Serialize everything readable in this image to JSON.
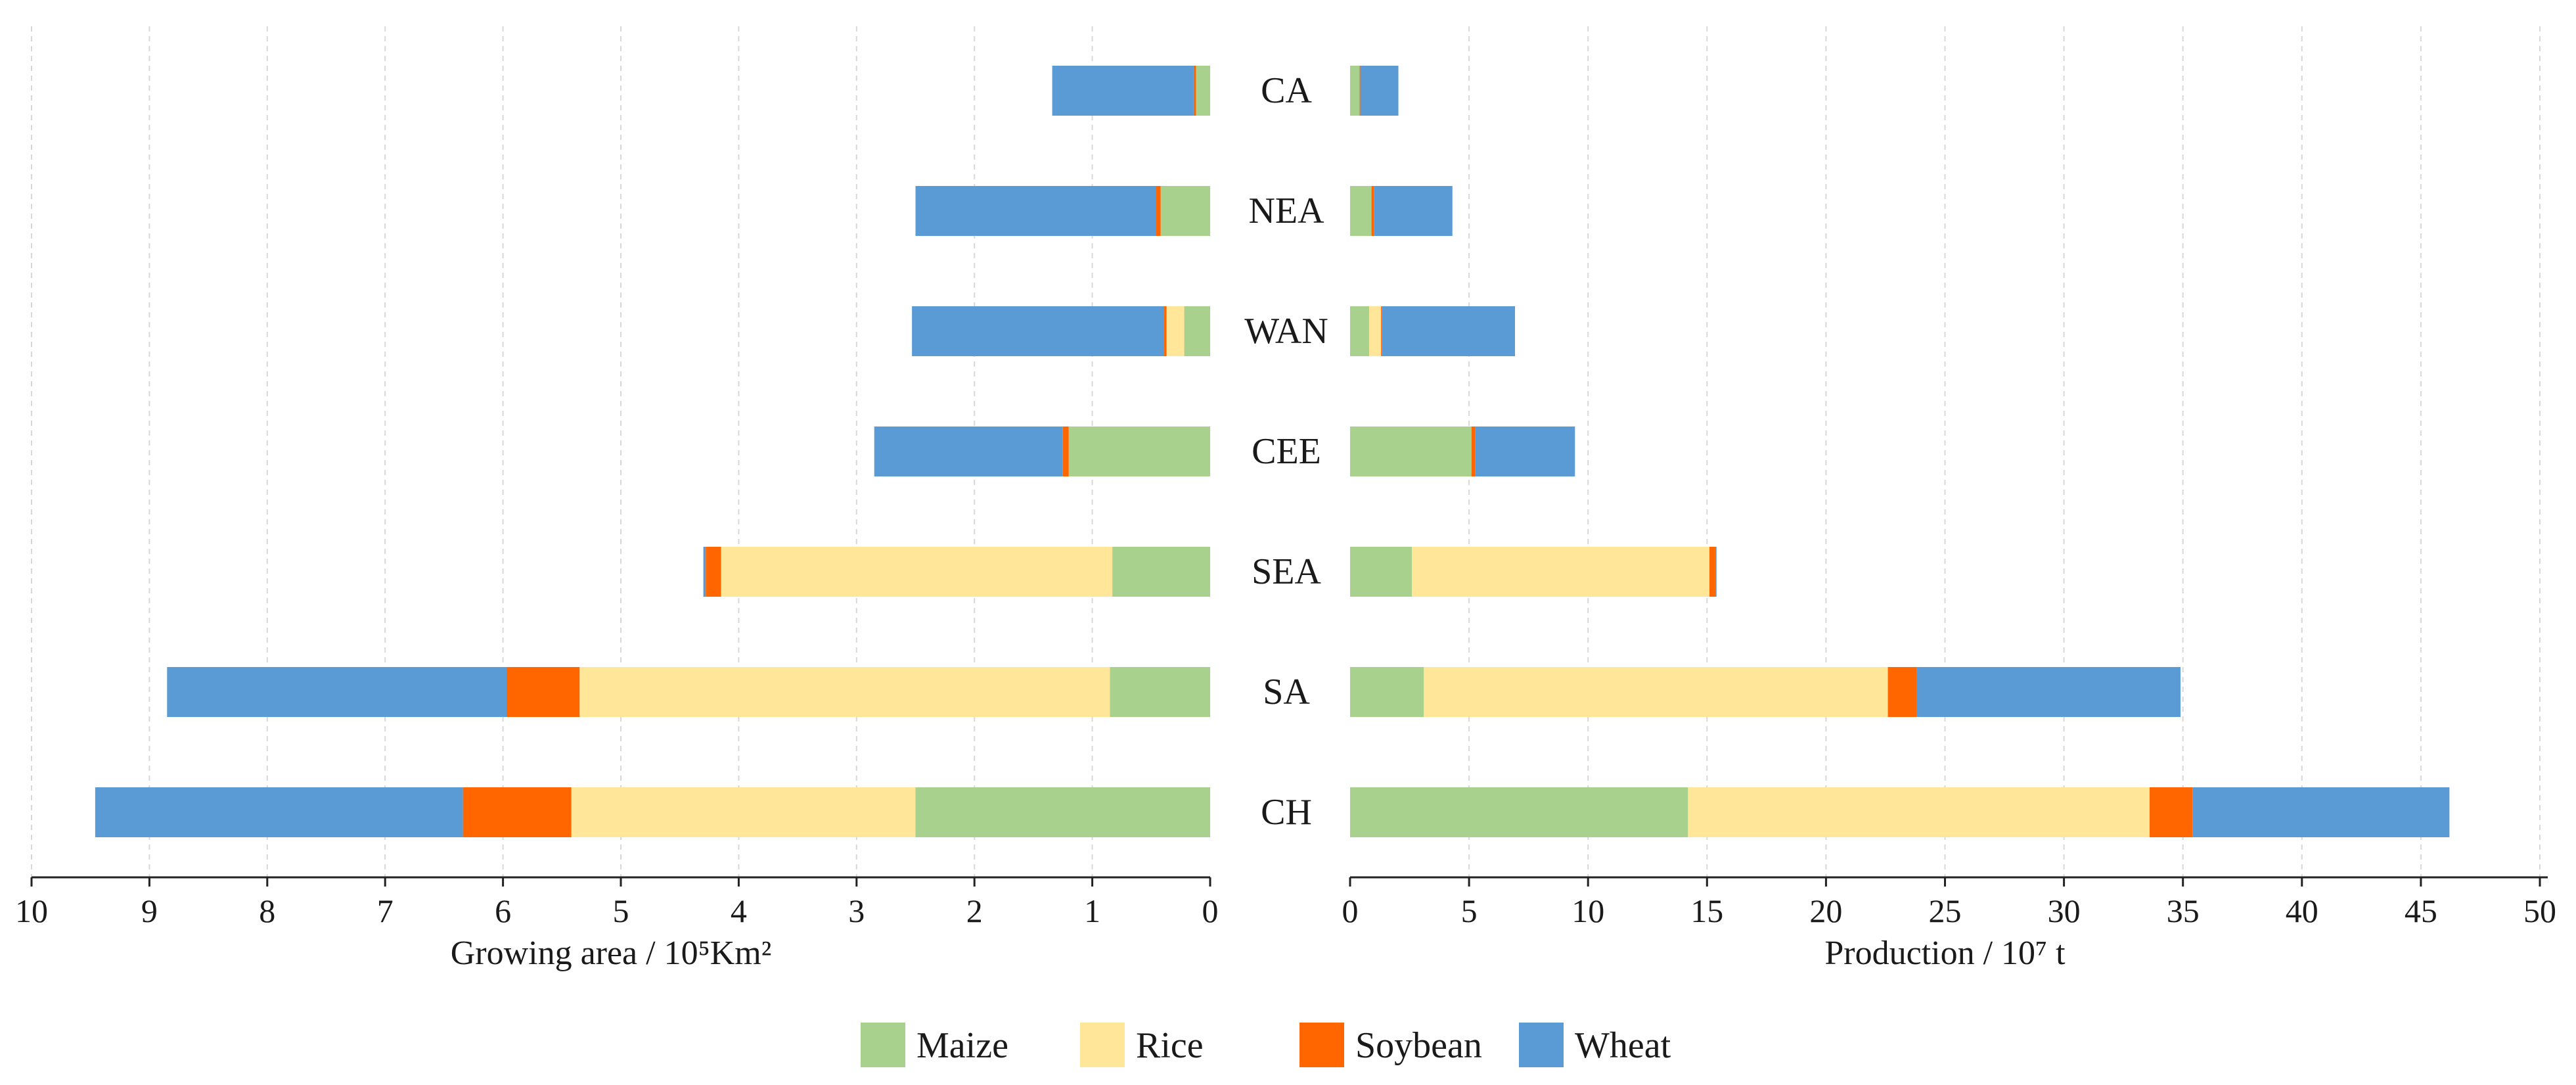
{
  "chart_data": {
    "type": "bar",
    "orientation": "horizontal",
    "stacked": true,
    "categories": [
      "CA",
      "NEA",
      "WAN",
      "CEE",
      "SEA",
      "SA",
      "CH"
    ],
    "series_order": [
      "Maize",
      "Rice",
      "Soybean",
      "Wheat"
    ],
    "colors": {
      "Maize": "#a9d18e",
      "Rice": "#ffe699",
      "Soybean": "#ff6600",
      "Wheat": "#5b9bd5"
    },
    "panels": [
      {
        "key": "area",
        "direction": "leftward",
        "xlabel": "Growing area / 10⁵Km²",
        "xlim": [
          0,
          10
        ],
        "ticks": [
          "0",
          "1",
          "2",
          "3",
          "4",
          "5",
          "6",
          "7",
          "8",
          "9",
          "10"
        ],
        "series": [
          {
            "name": "Maize",
            "values": [
              0.12,
              0.42,
              0.22,
              1.2,
              0.83,
              0.85,
              2.5
            ]
          },
          {
            "name": "Rice",
            "values": [
              0.0,
              0.0,
              0.15,
              0.0,
              3.32,
              4.5,
              2.92
            ]
          },
          {
            "name": "Soybean",
            "values": [
              0.02,
              0.04,
              0.02,
              0.05,
              0.13,
              0.62,
              0.92
            ]
          },
          {
            "name": "Wheat",
            "values": [
              1.2,
              2.04,
              2.14,
              1.6,
              0.02,
              2.88,
              3.12
            ]
          }
        ]
      },
      {
        "key": "production",
        "direction": "rightward",
        "xlabel": "Production / 10⁷ t",
        "xlim": [
          0,
          50
        ],
        "ticks": [
          "0",
          "5",
          "10",
          "15",
          "20",
          "25",
          "30",
          "35",
          "40",
          "45",
          "50"
        ],
        "series": [
          {
            "name": "Maize",
            "values": [
              0.4,
              0.9,
              0.8,
              5.1,
              2.6,
              3.1,
              14.2
            ]
          },
          {
            "name": "Rice",
            "values": [
              0.0,
              0.0,
              0.5,
              0.0,
              12.5,
              19.5,
              19.4
            ]
          },
          {
            "name": "Soybean",
            "values": [
              0.03,
              0.1,
              0.03,
              0.15,
              0.25,
              1.2,
              1.8
            ]
          },
          {
            "name": "Wheat",
            "values": [
              1.6,
              3.3,
              5.6,
              4.2,
              0.05,
              11.1,
              10.8
            ]
          }
        ]
      }
    ],
    "legend": {
      "position": "bottom-center",
      "entries": [
        "Maize",
        "Rice",
        "Soybean",
        "Wheat"
      ]
    }
  }
}
